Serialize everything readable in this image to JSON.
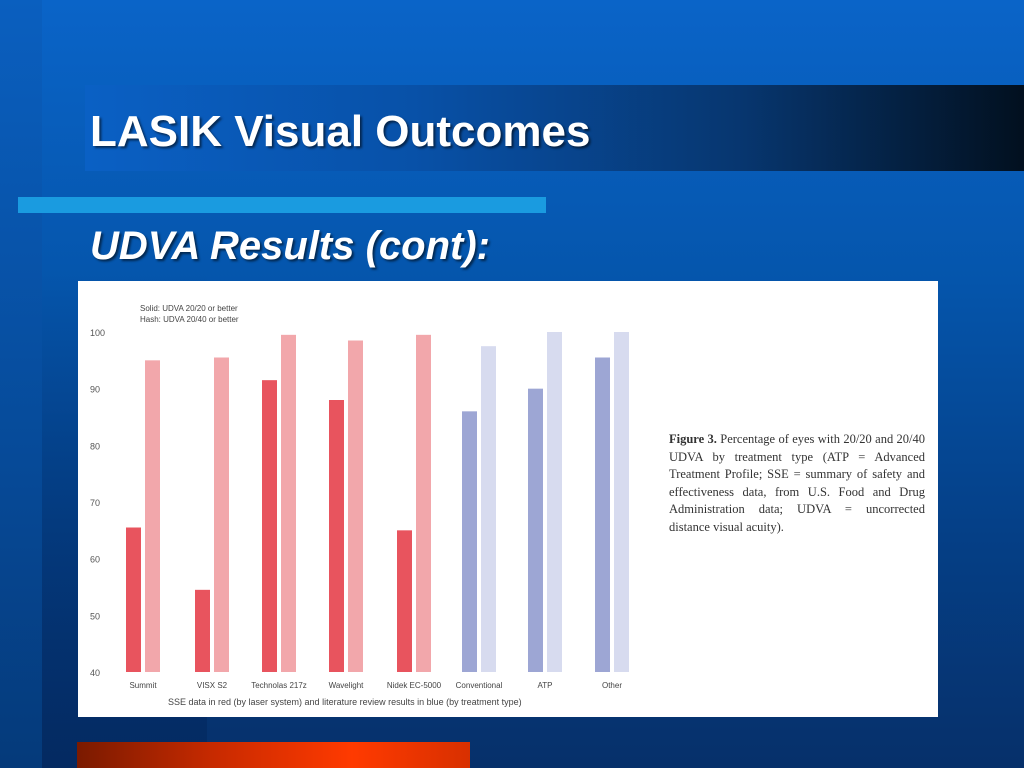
{
  "slide": {
    "title": "LASIK Visual Outcomes",
    "subtitle": "UDVA Results (cont):"
  },
  "colors": {
    "sse_solid": "#e8545e",
    "sse_hash": "#f2a7ab",
    "lit_solid": "#9da6d4",
    "lit_hash": "#d7dbef"
  },
  "figure": {
    "caption_lead": "Figure 3.",
    "caption_body": "Percentage of eyes with 20/20 and 20/40 UDVA by treatment type (ATP = Advanced Treatment Profile; SSE = summary of safety and effectiveness data, from U.S. Food and Drug Administration data; UDVA = uncorrected distance visual acuity).",
    "legend": [
      "Solid: UDVA 20/20 or better",
      "Hash: UDVA 20/40 or better"
    ],
    "footnote": "SSE data in red (by laser system) and literature review results in blue (by treatment type)"
  },
  "chart_data": {
    "type": "bar",
    "categories": [
      "Summit",
      "VISX S2",
      "Technolas 217z",
      "Wavelight",
      "Nidek EC-5000",
      "Conventional",
      "ATP",
      "Other"
    ],
    "series": [
      {
        "name": "Solid: UDVA 20/20 or better",
        "values": [
          65.5,
          54.5,
          91.5,
          88,
          65,
          86,
          90,
          95.5
        ]
      },
      {
        "name": "Hash: UDVA 20/40 or better",
        "values": [
          95,
          95.5,
          99.5,
          98.5,
          99.5,
          97.5,
          100,
          100
        ]
      }
    ],
    "group_colors": [
      "sse",
      "sse",
      "sse",
      "sse",
      "sse",
      "lit",
      "lit",
      "lit"
    ],
    "yticks": [
      40,
      50,
      60,
      70,
      80,
      90,
      100
    ],
    "ylim": [
      40,
      100
    ],
    "grid": false,
    "legend_position": "top-left"
  }
}
